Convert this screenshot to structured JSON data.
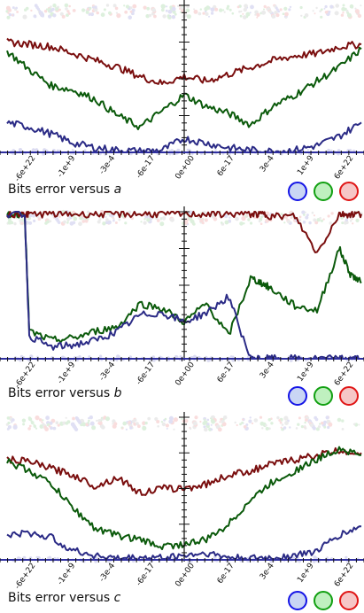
{
  "colors": {
    "blue": "#2b2b86",
    "green": "#0b5a0b",
    "red": "#7a0e0e",
    "toggle_blue_border": "#1515e6",
    "toggle_blue_fill": "#c9d6f4",
    "toggle_green_border": "#12a012",
    "toggle_green_fill": "#bff0bf",
    "toggle_red_border": "#e01515",
    "toggle_red_fill": "#f6c6c6"
  },
  "x_tick_labels": [
    "-6e+22",
    "-1e+9",
    "-3e-4",
    "-6e-17",
    "0e+00",
    "6e-17",
    "3e-4",
    "1e+9",
    "6e+22"
  ],
  "chart_data": [
    {
      "type": "line",
      "caption_prefix": "Bits error versus ",
      "caption_var": "a",
      "x": [
        -8,
        -7,
        -6,
        -5,
        -4,
        -3,
        -2,
        -1,
        0,
        1,
        2,
        3,
        4,
        5,
        6,
        7,
        8
      ],
      "ylim": [
        0,
        64
      ],
      "series": [
        {
          "color": "red",
          "values": [
            48,
            47,
            46,
            43,
            40,
            37,
            33,
            30,
            33,
            31,
            34,
            37,
            40,
            42,
            43,
            46,
            47
          ]
        },
        {
          "color": "green",
          "values": [
            44,
            36,
            29,
            27,
            23,
            16,
            11,
            18,
            25,
            20,
            17,
            12,
            20,
            25,
            31,
            37,
            45
          ]
        },
        {
          "color": "blue",
          "values": [
            13,
            11,
            8,
            4,
            2,
            1,
            0.5,
            1,
            6,
            4,
            2,
            1,
            0.5,
            1,
            3,
            7,
            13
          ]
        }
      ]
    },
    {
      "type": "line",
      "caption_prefix": "Bits error versus ",
      "caption_var": "b",
      "x": [
        -8,
        -7.2,
        -7,
        -6,
        -5,
        -4,
        -3,
        -2,
        -1,
        0,
        1,
        2,
        3,
        3.5,
        4,
        5,
        6,
        7,
        7.5,
        8
      ],
      "ylim": [
        0,
        64
      ],
      "series": [
        {
          "color": "green",
          "values": [
            63,
            63,
            12,
            8,
            9,
            12,
            14,
            24,
            22,
            16,
            24,
            10,
            35,
            33,
            30,
            23,
            21,
            48,
            37,
            33
          ]
        },
        {
          "color": "red",
          "values": [
            63,
            63,
            63,
            63,
            63,
            63,
            63,
            63,
            63,
            63,
            63,
            63,
            63,
            63,
            62,
            62,
            46,
            63,
            63,
            63
          ]
        },
        {
          "color": "blue",
          "values": [
            63,
            63,
            10,
            5,
            6,
            8,
            12,
            19,
            20,
            16,
            20,
            27,
            0,
            0,
            0,
            0,
            0,
            0,
            0,
            0
          ]
        }
      ]
    },
    {
      "type": "line",
      "caption_prefix": "Bits error versus ",
      "caption_var": "c",
      "x": [
        -8,
        -7,
        -6,
        -5,
        -4,
        -3,
        -2,
        -1,
        0,
        1,
        2,
        3,
        4,
        5,
        6,
        7,
        8
      ],
      "ylim": [
        0,
        64
      ],
      "series": [
        {
          "color": "red",
          "values": [
            45,
            44,
            41,
            38,
            33,
            37,
            30,
            32,
            32,
            34,
            38,
            40,
            43,
            45,
            47,
            49,
            48
          ]
        },
        {
          "color": "green",
          "values": [
            44,
            40,
            34,
            23,
            14,
            11,
            9,
            6,
            7,
            9,
            16,
            27,
            35,
            40,
            45,
            50,
            47
          ]
        },
        {
          "color": "blue",
          "values": [
            11,
            12,
            10,
            4,
            2,
            0.5,
            1,
            1,
            2,
            3,
            1,
            0.5,
            1,
            2,
            4,
            11,
            15
          ]
        }
      ]
    }
  ]
}
